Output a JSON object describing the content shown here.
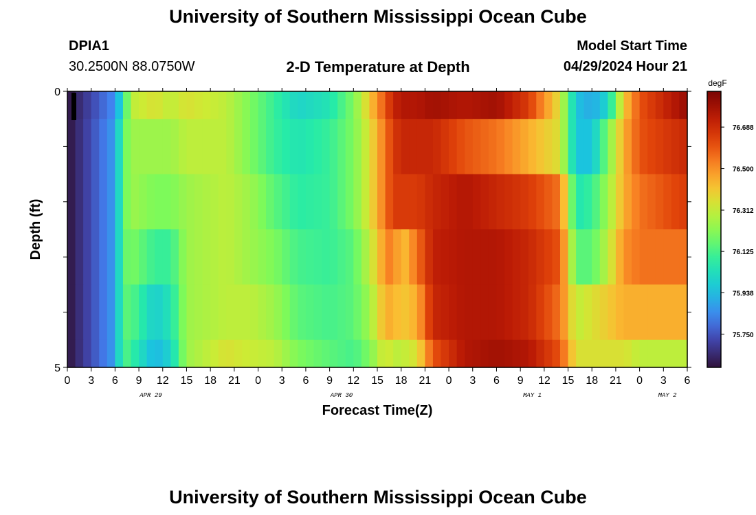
{
  "header": {
    "title": "University of Southern Mississippi Ocean Cube",
    "station_id": "DPIA1",
    "station_coords": "30.2500N  88.0750W",
    "chart_title": "2-D Temperature at Depth",
    "model_start_label": "Model Start Time",
    "model_start_value": "04/29/2024 Hour 21"
  },
  "footer": {
    "title_repeat": "University of Southern Mississippi Ocean Cube"
  },
  "chart_data": {
    "type": "heatmap",
    "title": "2-D Temperature at Depth",
    "xlabel": "Forecast Time(Z)",
    "ylabel": "Depth (ft)",
    "colorbar_label": "degF",
    "colorbar_ticks": [
      "76.688",
      "76.500",
      "76.312",
      "76.125",
      "75.938",
      "75.750"
    ],
    "colorbar_tick_values": [
      76.688,
      76.5,
      76.312,
      76.125,
      75.938,
      75.75
    ],
    "zlim": [
      75.6,
      76.85
    ],
    "x_tick_labels": [
      "0",
      "3",
      "6",
      "9",
      "12",
      "15",
      "18",
      "21",
      "0",
      "3",
      "6",
      "9",
      "12",
      "15",
      "18",
      "21",
      "0",
      "3",
      "6",
      "9",
      "12",
      "15",
      "18",
      "21",
      "0",
      "3",
      "6"
    ],
    "x_tick_hours": [
      0,
      3,
      6,
      9,
      12,
      15,
      18,
      21,
      24,
      27,
      30,
      33,
      36,
      39,
      42,
      45,
      48,
      51,
      54,
      57,
      60,
      63,
      66,
      69,
      72,
      75,
      78
    ],
    "date_labels": [
      {
        "text": "APR 29",
        "hour": 10.5
      },
      {
        "text": "APR 30",
        "hour": 34.5
      },
      {
        "text": "MAY 1",
        "hour": 58.5
      },
      {
        "text": "MAY 2",
        "hour": 75.5
      }
    ],
    "y_tick_labels": [
      "0",
      "5"
    ],
    "ylim": [
      0,
      5
    ],
    "xlim": [
      0,
      78
    ],
    "grid": false,
    "depth_rows": [
      "0",
      "1",
      "2",
      "3",
      "4",
      "5"
    ],
    "keyframes_hours": [
      0,
      6,
      7,
      8,
      11,
      13,
      15,
      20,
      23,
      26,
      29,
      33,
      36,
      38,
      40,
      41,
      42,
      44,
      46,
      50,
      54,
      58,
      62,
      64,
      66,
      68,
      70,
      72,
      75,
      78
    ],
    "keyframe_values": [
      [
        75.6,
        75.85,
        76.05,
        76.3,
        76.35,
        76.3,
        76.35,
        76.3,
        76.2,
        76.1,
        76.0,
        76.05,
        76.2,
        76.4,
        76.6,
        76.7,
        76.75,
        76.75,
        76.78,
        76.75,
        76.78,
        76.65,
        76.35,
        75.95,
        75.9,
        76.0,
        76.4,
        76.6,
        76.7,
        76.8
      ],
      [
        75.6,
        75.88,
        76.15,
        76.25,
        76.25,
        76.25,
        76.3,
        76.3,
        76.2,
        76.1,
        76.05,
        76.1,
        76.2,
        76.35,
        76.55,
        76.65,
        76.7,
        76.7,
        76.7,
        76.6,
        76.55,
        76.45,
        76.35,
        75.95,
        75.95,
        76.2,
        76.45,
        76.6,
        76.65,
        76.7
      ],
      [
        75.6,
        75.88,
        76.15,
        76.25,
        76.2,
        76.2,
        76.25,
        76.3,
        76.25,
        76.15,
        76.08,
        76.1,
        76.2,
        76.35,
        76.55,
        76.65,
        76.65,
        76.65,
        76.7,
        76.75,
        76.7,
        76.65,
        76.55,
        76.05,
        76.1,
        76.25,
        76.45,
        76.55,
        76.6,
        76.65
      ],
      [
        75.6,
        75.88,
        76.15,
        76.2,
        76.1,
        76.1,
        76.25,
        76.3,
        76.25,
        76.2,
        76.12,
        76.1,
        76.15,
        76.3,
        76.5,
        76.55,
        76.4,
        76.55,
        76.72,
        76.75,
        76.75,
        76.7,
        76.6,
        76.15,
        76.15,
        76.3,
        76.5,
        76.55,
        76.55,
        76.55
      ],
      [
        75.6,
        75.88,
        76.15,
        76.15,
        75.98,
        76.05,
        76.25,
        76.3,
        76.3,
        76.25,
        76.15,
        76.12,
        76.15,
        76.25,
        76.45,
        76.45,
        76.4,
        76.45,
        76.7,
        76.75,
        76.75,
        76.7,
        76.55,
        76.3,
        76.35,
        76.4,
        76.45,
        76.45,
        76.45,
        76.45
      ],
      [
        75.6,
        75.88,
        76.15,
        76.1,
        75.92,
        76.0,
        76.25,
        76.35,
        76.32,
        76.3,
        76.2,
        76.15,
        76.12,
        76.2,
        76.35,
        76.3,
        76.3,
        76.35,
        76.6,
        76.75,
        76.78,
        76.75,
        76.6,
        76.35,
        76.35,
        76.35,
        76.35,
        76.3,
        76.3,
        76.3
      ]
    ]
  }
}
